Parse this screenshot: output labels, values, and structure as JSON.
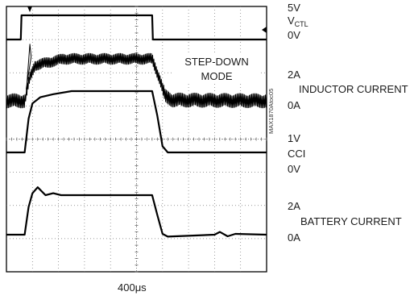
{
  "chart_data": {
    "type": "line",
    "title": "",
    "timebase": "400μs",
    "figure_code": "MAX1870Atoc05",
    "annotation": [
      "STEP-DOWN",
      "MODE"
    ],
    "grid": true,
    "x_divisions": 10,
    "y_divisions": 8,
    "series": [
      {
        "name": "VCTL",
        "scale_top": "5V",
        "label": "V",
        "label_sub": "CTL",
        "scale_bottom": "0V",
        "x": [
          0,
          0.55,
          0.58,
          5.6,
          5.63,
          10
        ],
        "y": [
          0,
          0,
          1,
          1,
          0,
          0
        ]
      },
      {
        "name": "INDUCTOR CURRENT",
        "scale_top": "2A",
        "label": "INDUCTOR CURRENT",
        "scale_bottom": "0A",
        "x": [
          0,
          0.7,
          0.9,
          1.1,
          1.5,
          2.2,
          5.6,
          5.9,
          6.1,
          6.4,
          10
        ],
        "y": [
          0.0,
          0.0,
          0.55,
          0.85,
          0.9,
          1.0,
          1.0,
          0.5,
          0.1,
          0.02,
          0.0
        ]
      },
      {
        "name": "CCI",
        "scale_top": "1V",
        "label": "CCI",
        "scale_bottom": "0V",
        "x": [
          0,
          0.7,
          0.85,
          1.0,
          1.3,
          1.8,
          2.5,
          5.6,
          5.8,
          6.0,
          6.2,
          10
        ],
        "y": [
          0.0,
          0.0,
          0.55,
          0.8,
          0.9,
          0.95,
          1.0,
          1.0,
          0.6,
          0.1,
          0.0,
          0.0
        ]
      },
      {
        "name": "BATTERY CURRENT",
        "scale_top": "2A",
        "label": "BATTERY CURRENT",
        "scale_bottom": "0A",
        "x": [
          0,
          0.7,
          0.85,
          1.0,
          1.2,
          1.5,
          1.8,
          2.1,
          2.5,
          3.0,
          5.6,
          5.8,
          6.0,
          6.2,
          8.0,
          8.2,
          8.5,
          8.8,
          10
        ],
        "y": [
          0.0,
          0.0,
          0.7,
          1.05,
          1.2,
          1.0,
          1.05,
          1.0,
          1.0,
          1.0,
          1.0,
          0.5,
          0.02,
          -0.05,
          0.0,
          0.07,
          -0.04,
          0.02,
          0.0
        ]
      }
    ]
  }
}
